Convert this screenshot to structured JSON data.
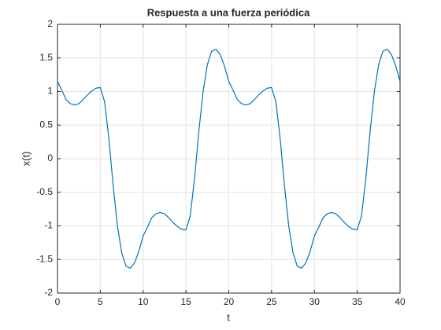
{
  "chart_data": {
    "type": "line",
    "title": "Respuesta a una fuerza periódica",
    "x_label": "t",
    "y_label": "x(t)",
    "xlim": [
      0,
      40
    ],
    "ylim": [
      -2,
      2
    ],
    "xticks": [
      0,
      5,
      10,
      15,
      20,
      25,
      30,
      35,
      40
    ],
    "yticks": [
      -2,
      -1.5,
      -1,
      -0.5,
      0,
      0.5,
      1,
      1.5,
      2
    ],
    "grid": true,
    "x": [
      0,
      0.5,
      1,
      1.5,
      2,
      2.5,
      3,
      3.5,
      4,
      4.5,
      5,
      5.5,
      6,
      6.5,
      7,
      7.5,
      8,
      8.5,
      9,
      9.5,
      10,
      10.5,
      11,
      11.5,
      12,
      12.5,
      13,
      13.5,
      14,
      14.5,
      15,
      15.5,
      16,
      16.5,
      17,
      17.5,
      18,
      18.5,
      19,
      19.5,
      20,
      20.5,
      21,
      21.5,
      22,
      22.5,
      23,
      23.5,
      24,
      24.5,
      25,
      25.5,
      26,
      26.5,
      27,
      27.5,
      28,
      28.5,
      29,
      29.5,
      30,
      30.5,
      31,
      31.5,
      32,
      32.5,
      33,
      33.5,
      34,
      34.5,
      35,
      35.5,
      36,
      36.5,
      37,
      37.5,
      38,
      38.5,
      39,
      39.5,
      40
    ],
    "series": [
      {
        "color": "#0072bd",
        "values": [
          1.15,
          1.02,
          0.88,
          0.82,
          0.8,
          0.82,
          0.88,
          0.95,
          1.01,
          1.05,
          1.06,
          0.85,
          0.3,
          -0.4,
          -1.0,
          -1.4,
          -1.6,
          -1.63,
          -1.55,
          -1.38,
          -1.15,
          -1.02,
          -0.88,
          -0.82,
          -0.8,
          -0.82,
          -0.88,
          -0.95,
          -1.01,
          -1.05,
          -1.06,
          -0.85,
          -0.3,
          0.4,
          1.0,
          1.4,
          1.6,
          1.63,
          1.55,
          1.38,
          1.15,
          1.02,
          0.88,
          0.82,
          0.8,
          0.82,
          0.88,
          0.95,
          1.01,
          1.05,
          1.06,
          0.85,
          0.3,
          -0.4,
          -1.0,
          -1.4,
          -1.6,
          -1.63,
          -1.55,
          -1.38,
          -1.15,
          -1.02,
          -0.88,
          -0.82,
          -0.8,
          -0.82,
          -0.88,
          -0.95,
          -1.01,
          -1.05,
          -1.06,
          -0.85,
          -0.3,
          0.4,
          1.0,
          1.4,
          1.6,
          1.63,
          1.55,
          1.38,
          1.15
        ]
      }
    ]
  }
}
